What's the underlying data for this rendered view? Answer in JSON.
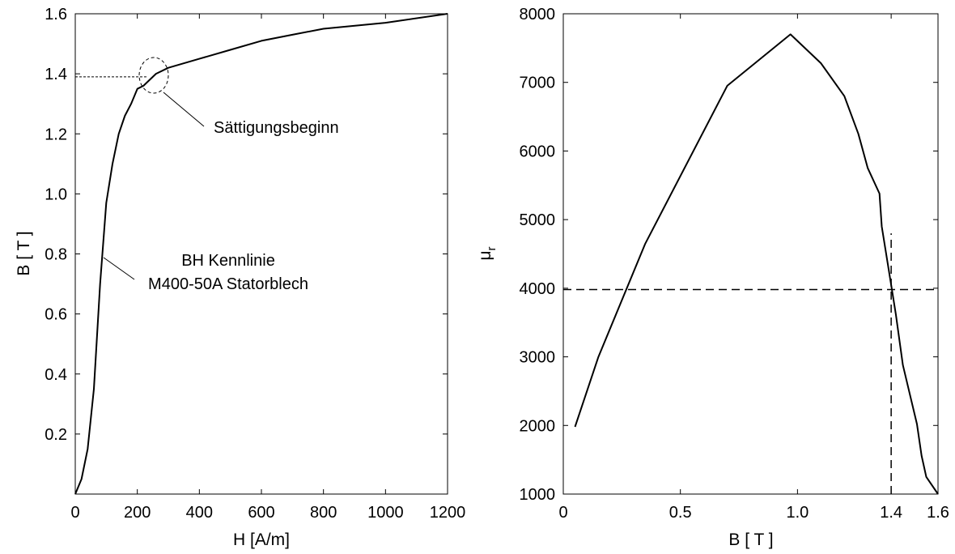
{
  "chart_data": [
    {
      "type": "line",
      "title": "",
      "xlabel": "H [A/m]",
      "ylabel": "B [ T ]",
      "xlim": [
        0,
        1200
      ],
      "ylim": [
        0,
        1.6
      ],
      "grid": false,
      "x_ticks": [
        {
          "value": 0,
          "label": "0"
        },
        {
          "value": 200,
          "label": "200"
        },
        {
          "value": 400,
          "label": "400"
        },
        {
          "value": 600,
          "label": "600"
        },
        {
          "value": 800,
          "label": "800"
        },
        {
          "value": 1000,
          "label": "1000"
        },
        {
          "value": 1200,
          "label": "1200"
        }
      ],
      "y_ticks": [
        {
          "value": 0.2,
          "label": "0.2"
        },
        {
          "value": 0.4,
          "label": "0.4"
        },
        {
          "value": 0.6,
          "label": "0.6"
        },
        {
          "value": 0.8,
          "label": "0.8"
        },
        {
          "value": 1.0,
          "label": "1.0"
        },
        {
          "value": 1.2,
          "label": "1.2"
        },
        {
          "value": 1.4,
          "label": "1.4"
        },
        {
          "value": 1.6,
          "label": "1.6"
        }
      ],
      "series": [
        {
          "name": "",
          "x": [
            0,
            20,
            40,
            60,
            80,
            100,
            120,
            140,
            160,
            180,
            200,
            220,
            260,
            300,
            400,
            500,
            600,
            700,
            800,
            1000,
            1200
          ],
          "y": [
            0,
            0.05,
            0.15,
            0.35,
            0.7,
            0.97,
            1.1,
            1.2,
            1.26,
            1.3,
            1.35,
            1.36,
            1.4,
            1.42,
            1.45,
            1.48,
            1.51,
            1.53,
            1.55,
            1.57,
            1.6
          ]
        }
      ],
      "reference_lines": [
        {
          "from": [
            0,
            1.39
          ],
          "to": [
            230,
            1.39
          ],
          "style": "dotted"
        }
      ],
      "annotations": [
        {
          "text": "Sättigungsbeginn",
          "anchor": [
            260,
            1.39
          ],
          "marker": "ellipse"
        },
        {
          "text": "BH Kennlinie",
          "anchor": [
            110,
            0.8
          ]
        },
        {
          "text": "M400-50A Statorblech",
          "anchor": [
            110,
            0.8
          ]
        }
      ]
    },
    {
      "type": "line",
      "title": "",
      "xlabel": "B [ T ]",
      "ylabel": "μ",
      "ylabel_subscript": "r",
      "xlim": [
        0,
        1.6
      ],
      "ylim": [
        1000,
        8000
      ],
      "grid": false,
      "x_ticks": [
        {
          "value": 0,
          "label": "0"
        },
        {
          "value": 0.5,
          "label": "0.5"
        },
        {
          "value": 1.0,
          "label": "1.0"
        },
        {
          "value": 1.4,
          "label": "1.4"
        },
        {
          "value": 1.6,
          "label": "1.6"
        }
      ],
      "y_ticks": [
        {
          "value": 1000,
          "label": "1000"
        },
        {
          "value": 2000,
          "label": "2000"
        },
        {
          "value": 3000,
          "label": "3000"
        },
        {
          "value": 4000,
          "label": "4000"
        },
        {
          "value": 5000,
          "label": "5000"
        },
        {
          "value": 6000,
          "label": "6000"
        },
        {
          "value": 7000,
          "label": "7000"
        },
        {
          "value": 8000,
          "label": "8000"
        }
      ],
      "series": [
        {
          "name": "",
          "x": [
            0.05,
            0.15,
            0.35,
            0.7,
            0.97,
            1.1,
            1.2,
            1.26,
            1.3,
            1.35,
            1.36,
            1.4,
            1.42,
            1.45,
            1.48,
            1.51,
            1.53,
            1.55,
            1.6
          ],
          "y": [
            1980,
            3000,
            4650,
            6950,
            7700,
            7280,
            6800,
            6250,
            5750,
            5380,
            4900,
            4050,
            3620,
            2880,
            2450,
            2020,
            1560,
            1250,
            1000
          ]
        }
      ],
      "reference_lines": [
        {
          "from": [
            0,
            3980
          ],
          "to": [
            1.6,
            3980
          ],
          "style": "dashed"
        },
        {
          "from": [
            1.4,
            1000
          ],
          "to": [
            1.4,
            4800
          ],
          "style": "dashed"
        }
      ]
    }
  ]
}
